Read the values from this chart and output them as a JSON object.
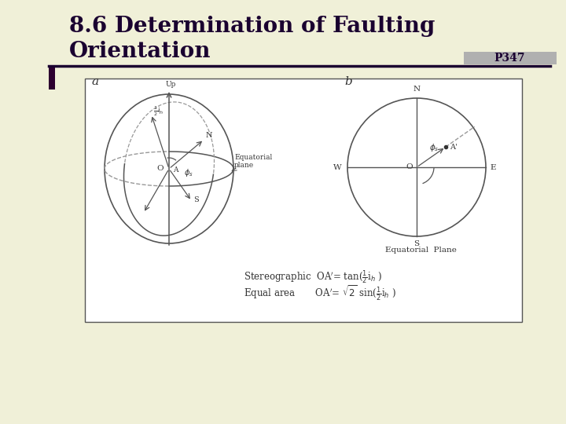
{
  "bg_color": "#f0f0d8",
  "title_line1": "8.6 Determination of Faulting",
  "title_line2": "Orientation",
  "title_color": "#1a0030",
  "title_fontsize": 20,
  "page_ref": "P347",
  "page_ref_fontsize": 10,
  "page_ref_color": "#1a0030",
  "divider_color": "#1a0030",
  "box_bg": "#ffffff",
  "box_edge_color": "#555555",
  "diagram_line_color": "#555555",
  "dashed_color": "#999999",
  "label_color": "#333333",
  "formula_color": "#333333"
}
